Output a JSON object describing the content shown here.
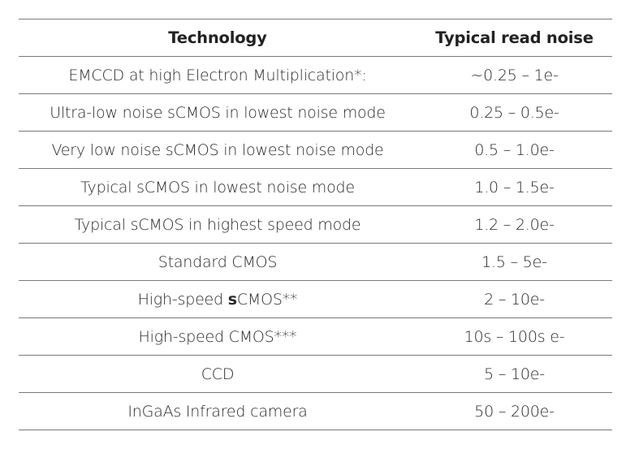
{
  "table": {
    "headers": [
      "Technology",
      "Typical read noise"
    ],
    "rows": [
      {
        "technology": "EMCCD at high Electron Multiplication*:",
        "read_noise": "~0.25 – 1e-"
      },
      {
        "technology": "Ultra-low noise sCMOS in lowest noise mode",
        "read_noise": "0.25 – 0.5e-"
      },
      {
        "technology": "Very low noise sCMOS in lowest noise mode",
        "read_noise": "0.5 – 1.0e-"
      },
      {
        "technology": "Typical sCMOS in lowest noise mode",
        "read_noise": "1.0 – 1.5e-"
      },
      {
        "technology": "Typical sCMOS in highest speed mode",
        "read_noise": "1.2 – 2.0e-"
      },
      {
        "technology": "Standard CMOS",
        "read_noise": "1.5 – 5e-"
      },
      {
        "technology_prefix": "High-speed ",
        "technology_bold": "s",
        "technology_suffix": "CMOS**",
        "read_noise": "2 – 10e-"
      },
      {
        "technology": "High-speed CMOS***",
        "read_noise": "10s – 100s e-"
      },
      {
        "technology": "CCD",
        "read_noise": "5 – 10e-"
      },
      {
        "technology": "InGaAs Infrared camera",
        "read_noise": "50 – 200e-"
      }
    ]
  }
}
